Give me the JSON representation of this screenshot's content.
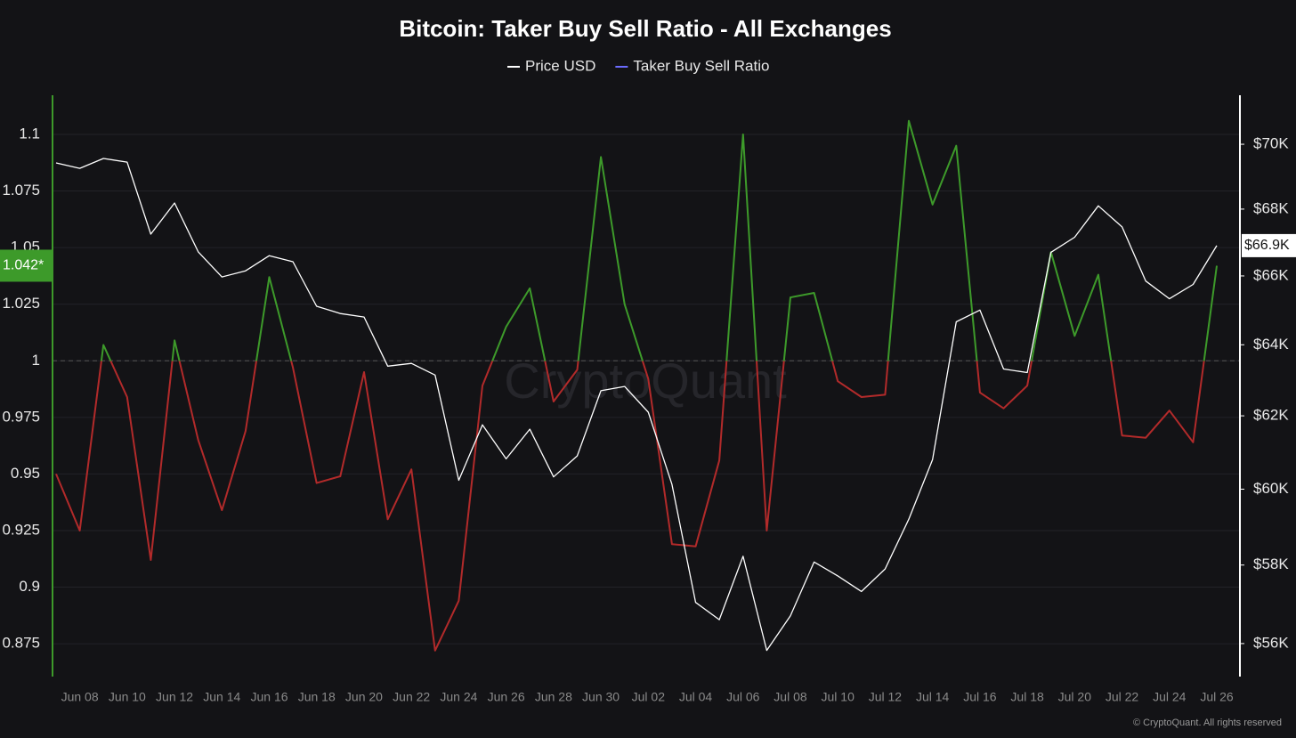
{
  "chart_data": {
    "type": "line",
    "title": "Bitcoin: Taker Buy Sell Ratio - All Exchanges",
    "watermark": "CryptoQuant",
    "footer": "© CryptoQuant. All rights reserved",
    "categories": [
      null,
      "Jun 08",
      null,
      "Jun 10",
      null,
      "Jun 12",
      null,
      "Jun 14",
      null,
      "Jun 16",
      null,
      "Jun 18",
      null,
      "Jun 20",
      null,
      "Jun 22",
      null,
      "Jun 24",
      null,
      "Jun 26",
      null,
      "Jun 28",
      null,
      "Jun 30",
      null,
      "Jul 02",
      null,
      "Jul 04",
      null,
      "Jul 06",
      null,
      "Jul 08",
      null,
      "Jul 10",
      null,
      "Jul 12",
      null,
      "Jul 14",
      null,
      "Jul 16",
      null,
      "Jul 18",
      null,
      "Jul 20",
      null,
      "Jul 22",
      null,
      "Jul 24",
      null,
      "Jul 26"
    ],
    "series": [
      {
        "name": "Price USD",
        "color": "#ffffff",
        "axis": "y2",
        "last_value_label": "$66.9K",
        "values": [
          69418,
          69250,
          69556,
          69445,
          67243,
          68187,
          66714,
          65970,
          66150,
          66600,
          66420,
          65113,
          64900,
          64800,
          63392,
          63470,
          63140,
          60240,
          61750,
          60820,
          61630,
          60330,
          60900,
          62700,
          62820,
          62100,
          60130,
          57040,
          56600,
          58230,
          55830,
          56700,
          58080,
          57720,
          57320,
          57900,
          59200,
          60800,
          64660,
          65000,
          63310,
          63210,
          66700,
          67150,
          68100,
          67460,
          65850,
          65330,
          65750,
          66900
        ]
      },
      {
        "name": "Taker Buy Sell Ratio",
        "color": "#6b6bff",
        "up_color": "#3d9a2a",
        "down_color": "#b22a2a",
        "last_value_label": "1.042*",
        "values": [
          0.95,
          0.925,
          1.007,
          0.984,
          0.912,
          1.009,
          0.965,
          0.934,
          0.969,
          1.037,
          0.997,
          0.946,
          0.949,
          0.995,
          0.93,
          0.952,
          0.872,
          0.894,
          0.989,
          1.015,
          1.032,
          0.982,
          0.996,
          1.09,
          1.025,
          0.992,
          0.919,
          0.918,
          0.956,
          1.1,
          0.925,
          1.028,
          1.03,
          0.991,
          0.984,
          0.985,
          1.106,
          1.069,
          1.095,
          0.986,
          0.979,
          0.989,
          1.048,
          1.011,
          1.038,
          0.967,
          0.966,
          0.978,
          0.964,
          1.042
        ]
      }
    ],
    "reference_line": 1,
    "ylim": [
      0.8605,
      1.1173
    ],
    "yticks": [
      0.875,
      0.9,
      0.925,
      0.95,
      0.975,
      1,
      1.025,
      1.05,
      1.075,
      1.1
    ],
    "y2lim": [
      55180,
      71550
    ],
    "y2scale": "log",
    "y2ticks": [
      {
        "value": 56000,
        "label": "$56K"
      },
      {
        "value": 58000,
        "label": "$58K"
      },
      {
        "value": 60000,
        "label": "$60K"
      },
      {
        "value": 62000,
        "label": "$62K"
      },
      {
        "value": 64000,
        "label": "$64K"
      },
      {
        "value": 66000,
        "label": "$66K"
      },
      {
        "value": 68000,
        "label": "$68K"
      },
      {
        "value": 70000,
        "label": "$70K"
      }
    ],
    "grid": true
  }
}
